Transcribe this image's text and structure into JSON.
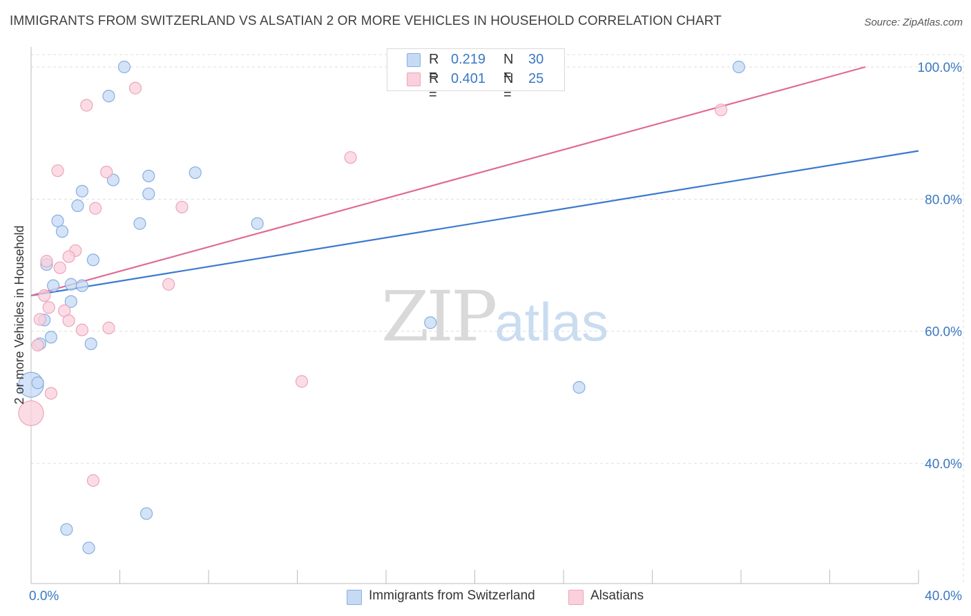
{
  "title": "IMMIGRANTS FROM SWITZERLAND VS ALSATIAN 2 OR MORE VEHICLES IN HOUSEHOLD CORRELATION CHART",
  "source": "Source: ZipAtlas.com",
  "watermark": {
    "zip": "ZIP",
    "atlas": "atlas"
  },
  "legend": {
    "rows": [
      {
        "r_label": "R =",
        "r_value": "0.219",
        "n_label": "N =",
        "n_value": "30",
        "color": "#a9c8ef"
      },
      {
        "r_label": "R =",
        "r_value": "0.401",
        "n_label": "N =",
        "n_value": "25",
        "color": "#f7bccd"
      }
    ]
  },
  "bottom_legend": {
    "series1": "Immigrants from Switzerland",
    "series2": "Alsatians"
  },
  "chart_data": {
    "type": "scatter",
    "title": "IMMIGRANTS FROM SWITZERLAND VS ALSATIAN 2 OR MORE VEHICLES IN HOUSEHOLD CORRELATION CHART",
    "xlabel": "",
    "ylabel": "2 or more Vehicles in Household",
    "xlim": [
      0,
      40
    ],
    "ylim": [
      20,
      101
    ],
    "x_tick_labels": [
      "0.0%",
      "40.0%"
    ],
    "y_ticks": [
      {
        "value": 100,
        "label": "100.0%"
      },
      {
        "value": 80,
        "label": "80.0%"
      },
      {
        "value": 60,
        "label": "60.0%"
      },
      {
        "value": 40,
        "label": "40.0%"
      }
    ],
    "grid": true,
    "series": [
      {
        "name": "Immigrants from Switzerland",
        "color": "#3a78d0",
        "marker_fill": "#c6daf4",
        "marker_stroke": "#86aee0",
        "trend": {
          "x": [
            0,
            40
          ],
          "y": [
            65.4,
            87.3
          ]
        },
        "points": [
          {
            "x": 4.2,
            "y": 100.0,
            "big": false
          },
          {
            "x": 3.5,
            "y": 95.6,
            "big": false
          },
          {
            "x": 3.7,
            "y": 82.9,
            "big": false
          },
          {
            "x": 5.3,
            "y": 83.5,
            "big": false
          },
          {
            "x": 7.4,
            "y": 84.0,
            "big": false
          },
          {
            "x": 2.3,
            "y": 81.2,
            "big": false
          },
          {
            "x": 5.3,
            "y": 80.8,
            "big": false
          },
          {
            "x": 2.1,
            "y": 79.0,
            "big": false
          },
          {
            "x": 1.2,
            "y": 76.7,
            "big": false
          },
          {
            "x": 1.4,
            "y": 75.1,
            "big": false
          },
          {
            "x": 4.9,
            "y": 76.3,
            "big": false
          },
          {
            "x": 10.2,
            "y": 76.3,
            "big": false
          },
          {
            "x": 2.8,
            "y": 70.8,
            "big": false
          },
          {
            "x": 0.7,
            "y": 70.1,
            "big": false
          },
          {
            "x": 1.0,
            "y": 66.9,
            "big": false
          },
          {
            "x": 1.8,
            "y": 67.1,
            "big": false
          },
          {
            "x": 2.3,
            "y": 66.9,
            "big": false
          },
          {
            "x": 1.8,
            "y": 64.5,
            "big": false
          },
          {
            "x": 0.6,
            "y": 61.7,
            "big": false
          },
          {
            "x": 0.9,
            "y": 59.1,
            "big": false
          },
          {
            "x": 0.4,
            "y": 58.1,
            "big": false
          },
          {
            "x": 2.7,
            "y": 58.1,
            "big": false
          },
          {
            "x": 18.0,
            "y": 61.3,
            "big": false
          },
          {
            "x": 0.0,
            "y": 51.9,
            "big": true
          },
          {
            "x": 0.3,
            "y": 52.2,
            "big": false
          },
          {
            "x": 24.7,
            "y": 51.5,
            "big": false
          },
          {
            "x": 1.6,
            "y": 30.0,
            "big": false
          },
          {
            "x": 5.2,
            "y": 32.4,
            "big": false
          },
          {
            "x": 2.6,
            "y": 27.2,
            "big": false
          },
          {
            "x": 31.9,
            "y": 100.0,
            "big": false
          }
        ]
      },
      {
        "name": "Alsatians",
        "color": "#e06a95",
        "marker_fill": "#fad0dc",
        "marker_stroke": "#eda3ba",
        "trend": {
          "x": [
            0,
            37.6
          ],
          "y": [
            65.4,
            100.0
          ]
        },
        "points": [
          {
            "x": 4.7,
            "y": 96.8,
            "big": false
          },
          {
            "x": 2.5,
            "y": 94.2,
            "big": false
          },
          {
            "x": 14.4,
            "y": 86.3,
            "big": false
          },
          {
            "x": 31.1,
            "y": 93.5,
            "big": false
          },
          {
            "x": 1.2,
            "y": 84.3,
            "big": false
          },
          {
            "x": 3.4,
            "y": 84.1,
            "big": false
          },
          {
            "x": 2.9,
            "y": 78.6,
            "big": false
          },
          {
            "x": 6.8,
            "y": 78.8,
            "big": false
          },
          {
            "x": 2.0,
            "y": 72.2,
            "big": false
          },
          {
            "x": 1.7,
            "y": 71.3,
            "big": false
          },
          {
            "x": 0.7,
            "y": 70.6,
            "big": false
          },
          {
            "x": 1.3,
            "y": 69.6,
            "big": false
          },
          {
            "x": 6.2,
            "y": 67.1,
            "big": false
          },
          {
            "x": 0.6,
            "y": 65.4,
            "big": false
          },
          {
            "x": 0.8,
            "y": 63.6,
            "big": false
          },
          {
            "x": 1.5,
            "y": 63.1,
            "big": false
          },
          {
            "x": 0.4,
            "y": 61.8,
            "big": false
          },
          {
            "x": 1.7,
            "y": 61.6,
            "big": false
          },
          {
            "x": 2.3,
            "y": 60.2,
            "big": false
          },
          {
            "x": 3.5,
            "y": 60.5,
            "big": false
          },
          {
            "x": 0.3,
            "y": 57.9,
            "big": false
          },
          {
            "x": 12.2,
            "y": 52.4,
            "big": false
          },
          {
            "x": 0.9,
            "y": 50.6,
            "big": false
          },
          {
            "x": 0.0,
            "y": 47.6,
            "big": true
          },
          {
            "x": 2.8,
            "y": 37.4,
            "big": false
          }
        ]
      }
    ]
  }
}
